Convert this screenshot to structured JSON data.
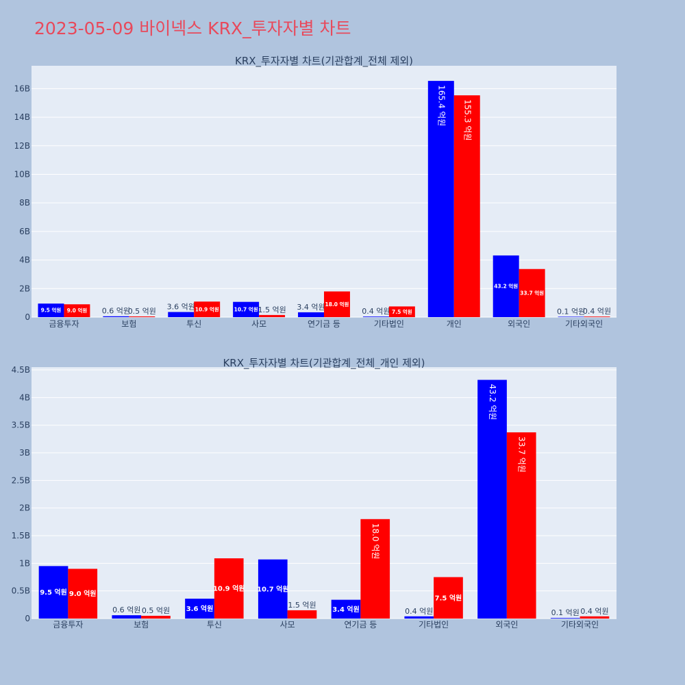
{
  "page_title": "2023-05-09 바이넥스 KRX_투자자별 차트",
  "colors": {
    "background": "#b0c4de",
    "plot_bg": "#e5ecf6",
    "title": "#e8495b",
    "series_a": "#0000ff",
    "series_b": "#ff0000",
    "text": "#2a3f5f"
  },
  "chart_data": [
    {
      "type": "bar",
      "title": "KRX_투자자별 차트(기관합계_전체 제외)",
      "categories": [
        "금융투자",
        "보험",
        "투신",
        "사모",
        "연기금 등",
        "기타법인",
        "개인",
        "외국인",
        "기타외국인"
      ],
      "series": [
        {
          "values": [
            950000000,
            60000000,
            360000000,
            1070000000,
            340000000,
            40000000,
            16540000000,
            4320000000,
            10000000
          ],
          "labels": [
            "9.5 억원",
            "0.6 억원",
            "3.6 억원",
            "10.7 억원",
            "3.4 억원",
            "0.4 억원",
            "165.4 억원",
            "43.2 억원",
            "0.1 억원"
          ]
        },
        {
          "values": [
            900000000,
            50000000,
            1090000000,
            150000000,
            1800000000,
            750000000,
            15530000000,
            3370000000,
            40000000
          ],
          "labels": [
            "9.0 억원",
            "0.5 억원",
            "10.9 억원",
            "1.5 억원",
            "18.0 억원",
            "7.5 억원",
            "155.3 억원",
            "33.7 억원",
            "0.4 억원"
          ]
        }
      ],
      "ylim": [
        0,
        17600000000
      ],
      "yticks": [
        0,
        2000000000,
        4000000000,
        6000000000,
        8000000000,
        10000000000,
        12000000000,
        14000000000,
        16000000000
      ],
      "ytick_labels": [
        "0",
        "2B",
        "4B",
        "6B",
        "8B",
        "10B",
        "12B",
        "14B",
        "16B"
      ],
      "grid": true
    },
    {
      "type": "bar",
      "title": "KRX_투자자별 차트(기관합계_전체_개인 제외)",
      "categories": [
        "금융투자",
        "보험",
        "투신",
        "사모",
        "연기금 등",
        "기타법인",
        "외국인",
        "기타외국인"
      ],
      "series": [
        {
          "values": [
            950000000,
            60000000,
            360000000,
            1070000000,
            340000000,
            40000000,
            4320000000,
            10000000
          ],
          "labels": [
            "9.5 억원",
            "0.6 억원",
            "3.6 억원",
            "10.7 억원",
            "3.4 억원",
            "0.4 억원",
            "43.2 억원",
            "0.1 억원"
          ]
        },
        {
          "values": [
            900000000,
            50000000,
            1090000000,
            150000000,
            1800000000,
            750000000,
            3370000000,
            40000000
          ],
          "labels": [
            "9.0 억원",
            "0.5 억원",
            "10.9 억원",
            "1.5 억원",
            "18.0 억원",
            "7.5 억원",
            "33.7 억원",
            "0.4 억원"
          ]
        }
      ],
      "ylim": [
        0,
        4550000000
      ],
      "yticks": [
        0,
        500000000,
        1000000000,
        1500000000,
        2000000000,
        2500000000,
        3000000000,
        3500000000,
        4000000000,
        4500000000
      ],
      "ytick_labels": [
        "0",
        "0.5B",
        "1B",
        "1.5B",
        "2B",
        "2.5B",
        "3B",
        "3.5B",
        "4B",
        "4.5B"
      ],
      "grid": true
    }
  ]
}
